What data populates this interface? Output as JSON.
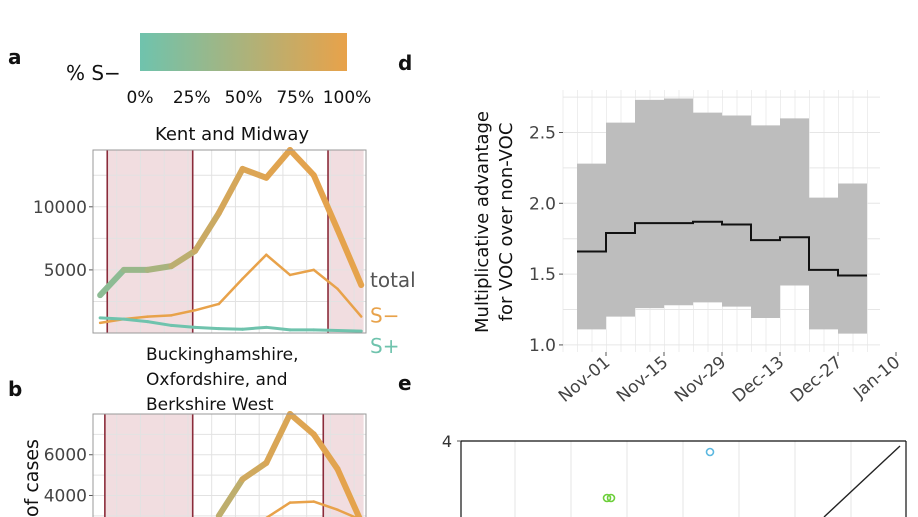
{
  "panels": {
    "a": "a",
    "b": "b",
    "d": "d",
    "e": "e"
  },
  "legend": {
    "title": "% S−",
    "ticks": [
      "0%",
      "25%",
      "50%",
      "75%",
      "100%"
    ],
    "color_low": "#6fc3ad",
    "color_high": "#e8a24a"
  },
  "colors": {
    "s_plus": "#6fc3ad",
    "s_minus": "#e8a24a",
    "total_label": "#555555",
    "shade": "#f1dde0",
    "vline": "#8b2b3a",
    "ci_band": "#bdbdbd",
    "estimate_line": "#111111"
  },
  "chart_data": [
    {
      "panel": "a",
      "type": "line",
      "title": "Kent and Midway",
      "xlabel": "",
      "ylabel": "",
      "x": [
        0,
        1,
        2,
        3,
        4,
        5,
        6,
        7,
        8,
        9,
        10,
        11
      ],
      "ylim": [
        0,
        14500
      ],
      "yticks": [
        5000,
        10000
      ],
      "yticklabels": [
        "5000",
        "10000"
      ],
      "series": [
        {
          "name": "total",
          "values": [
            3000,
            5000,
            5000,
            5300,
            6500,
            9500,
            13000,
            12300,
            14500,
            12500,
            8200,
            3800
          ],
          "sminus_share": [
            0.2,
            0.3,
            0.4,
            0.55,
            0.7,
            0.8,
            0.88,
            0.92,
            0.95,
            0.96,
            0.97,
            0.98
          ]
        },
        {
          "name": "S−",
          "values": [
            800,
            1100,
            1300,
            1400,
            1800,
            2300,
            4300,
            6200,
            4600,
            5000,
            3500,
            1300
          ]
        },
        {
          "name": "S+",
          "values": [
            1200,
            1100,
            900,
            600,
            450,
            350,
            300,
            450,
            250,
            250,
            200,
            150
          ]
        }
      ],
      "shaded_ranges": [
        [
          0.3,
          3.9
        ],
        [
          9.6,
          11.1
        ]
      ],
      "vlines": [
        0.3,
        3.9,
        9.6
      ],
      "grid": true
    },
    {
      "panel": "b",
      "type": "line",
      "title": "Buckinghamshire, Oxfordshire, and Berkshire West",
      "title_lines": [
        "Buckinghamshire,",
        "Oxfordshire, and",
        "Berkshire West"
      ],
      "ylabel": "of cases",
      "x": [
        0,
        1,
        2,
        3,
        4,
        5,
        6,
        7,
        8,
        9,
        10,
        11
      ],
      "ylim": [
        2600,
        8000
      ],
      "yticks": [
        4000,
        6000
      ],
      "yticklabels": [
        "4000",
        "6000"
      ],
      "series": [
        {
          "name": "total",
          "values": [
            null,
            null,
            null,
            null,
            null,
            3000,
            4800,
            5600,
            8000,
            7000,
            5300,
            2700
          ],
          "sminus_share": [
            0,
            0,
            0,
            0,
            0,
            0.55,
            0.75,
            0.85,
            0.9,
            0.93,
            0.96,
            0.97
          ]
        },
        {
          "name": "S−",
          "values": [
            null,
            null,
            null,
            null,
            null,
            null,
            null,
            2900,
            3650,
            3700,
            3300,
            2800
          ]
        }
      ],
      "shaded_ranges": [
        [
          0.2,
          3.9
        ],
        [
          9.4,
          11.1
        ]
      ],
      "vlines": [
        0.2,
        3.9,
        9.4
      ],
      "grid": true
    },
    {
      "panel": "d",
      "type": "area",
      "ylabel": "Multiplicative advantage for VOC over non-VOC",
      "ylabel_lines": [
        "Multiplicative advantage",
        "for VOC over non-VOC"
      ],
      "categories": [
        "Nov-01",
        "Nov-15",
        "Nov-29",
        "Dec-13",
        "Dec-27",
        "Jan-10"
      ],
      "ylim": [
        0.95,
        2.8
      ],
      "yticks": [
        1.0,
        1.5,
        2.0,
        2.5
      ],
      "yticklabels": [
        "1.0",
        "1.5",
        "2.0",
        "2.5"
      ],
      "steps": [
        {
          "week": "Oct-25",
          "est": 1.66,
          "lo": 1.11,
          "hi": 2.28
        },
        {
          "week": "Nov-01",
          "est": 1.79,
          "lo": 1.2,
          "hi": 2.57
        },
        {
          "week": "Nov-08",
          "est": 1.86,
          "lo": 1.26,
          "hi": 2.73
        },
        {
          "week": "Nov-15",
          "est": 1.86,
          "lo": 1.28,
          "hi": 2.74
        },
        {
          "week": "Nov-22",
          "est": 1.87,
          "lo": 1.3,
          "hi": 2.64
        },
        {
          "week": "Nov-29",
          "est": 1.85,
          "lo": 1.27,
          "hi": 2.62
        },
        {
          "week": "Dec-06",
          "est": 1.74,
          "lo": 1.19,
          "hi": 2.55
        },
        {
          "week": "Dec-13",
          "est": 1.76,
          "lo": 1.42,
          "hi": 2.6
        },
        {
          "week": "Dec-20",
          "est": 1.53,
          "lo": 1.11,
          "hi": 2.04
        },
        {
          "week": "Dec-27",
          "est": 1.49,
          "lo": 1.08,
          "hi": 2.14
        }
      ],
      "grid": true
    },
    {
      "panel": "e",
      "type": "scatter",
      "yticks": [
        4
      ],
      "yticklabels": [
        "4"
      ],
      "points": [
        {
          "name": "blue",
          "color": "#5bb8e0"
        },
        {
          "name": "green",
          "color": "#6ccf3a"
        }
      ],
      "grid": true
    }
  ]
}
